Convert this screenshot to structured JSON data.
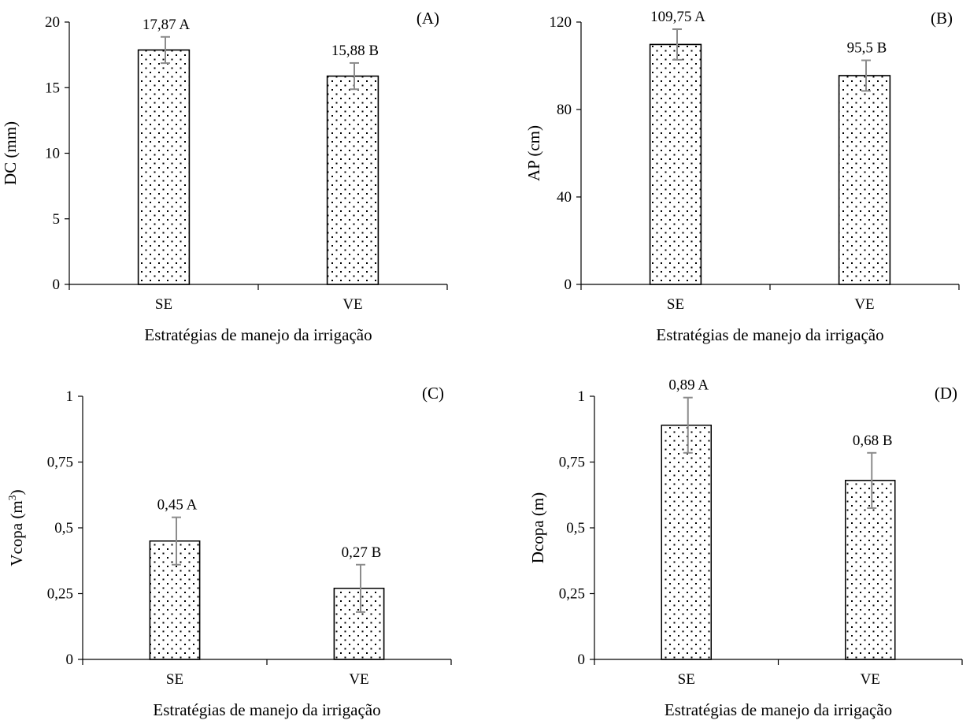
{
  "chart_data": [
    {
      "type": "bar",
      "panel": "(A)",
      "categories": [
        "SE",
        "VE"
      ],
      "values": [
        17.87,
        15.88
      ],
      "errors": [
        1.0,
        1.0
      ],
      "data_labels": [
        "17,87 A",
        "15,88 B"
      ],
      "xlabel": "Estratégias de manejo da irrigação",
      "ylabel": "DC (mm)",
      "ylim": [
        0,
        20
      ],
      "yticks": [
        0,
        5,
        10,
        15,
        20
      ],
      "ytick_labels": [
        "0",
        "5",
        "10",
        "15",
        "20"
      ],
      "grid": false,
      "legend": "none"
    },
    {
      "type": "bar",
      "panel": "(B)",
      "categories": [
        "SE",
        "VE"
      ],
      "values": [
        109.75,
        95.5
      ],
      "errors": [
        7.0,
        7.0
      ],
      "data_labels": [
        "109,75 A",
        "95,5 B"
      ],
      "xlabel": "Estratégias de manejo da irrigação",
      "ylabel": "AP (cm)",
      "ylim": [
        0,
        120
      ],
      "yticks": [
        0,
        40,
        80,
        120
      ],
      "ytick_labels": [
        "0",
        "40",
        "80",
        "120"
      ],
      "grid": false,
      "legend": "none"
    },
    {
      "type": "bar",
      "panel": "(C)",
      "categories": [
        "SE",
        "VE"
      ],
      "values": [
        0.45,
        0.27
      ],
      "errors": [
        0.09,
        0.09
      ],
      "data_labels": [
        "0,45 A",
        "0,27 B"
      ],
      "xlabel": "Estratégias de manejo da irrigação",
      "ylabel": "Vcopa (m",
      "ylabel_sup": "3",
      "ylabel_suffix": ")",
      "ylim": [
        0,
        1
      ],
      "yticks": [
        0,
        0.25,
        0.5,
        0.75,
        1
      ],
      "ytick_labels": [
        "0",
        "0,25",
        "0,5",
        "0,75",
        "1"
      ],
      "grid": false,
      "legend": "none"
    },
    {
      "type": "bar",
      "panel": "(D)",
      "categories": [
        "SE",
        "VE"
      ],
      "values": [
        0.89,
        0.68
      ],
      "errors": [
        0.105,
        0.105
      ],
      "data_labels": [
        "0,89 A",
        "0,68 B"
      ],
      "xlabel": "Estratégias de manejo da irrigação",
      "ylabel": "Dcopa (m)",
      "ylim": [
        0,
        1
      ],
      "yticks": [
        0,
        0.25,
        0.5,
        0.75,
        1
      ],
      "ytick_labels": [
        "0",
        "0,25",
        "0,5",
        "0,75",
        "1"
      ],
      "grid": false,
      "legend": "none"
    }
  ],
  "colors": {
    "bar_fill": "#ffffff",
    "bar_stroke": "#000000",
    "bar_dots": "#000000",
    "axis": "#000000",
    "error_bar": "#8c8c8c"
  }
}
